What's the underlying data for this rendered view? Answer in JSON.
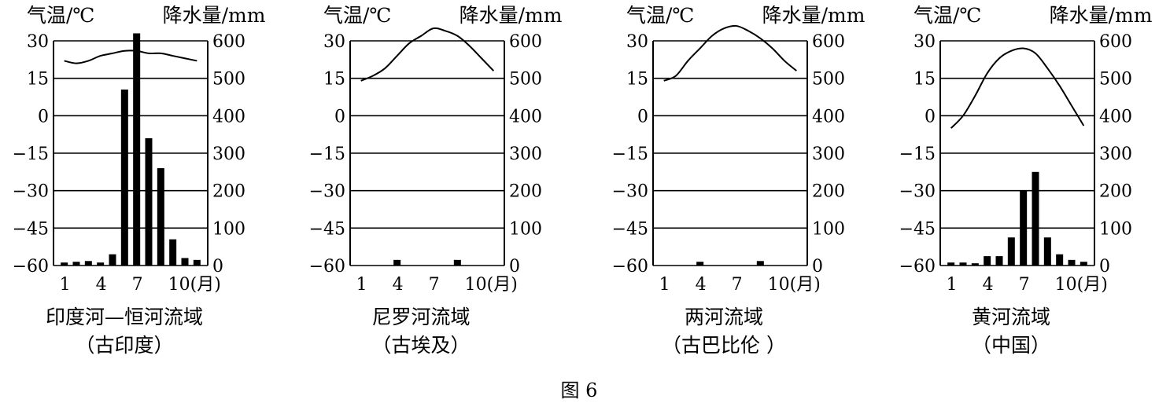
{
  "figure_label": "图 6",
  "chart_data": [
    {
      "type": "bar+line",
      "title": "印度河—恒河流域",
      "subtitle": "（古印度）",
      "temp_label": "气温/℃",
      "precip_label": "降水量/mm",
      "temp_ticks": [
        "30",
        "15",
        "0",
        "−15",
        "−30",
        "−45",
        "−60"
      ],
      "precip_ticks": [
        "600",
        "500",
        "400",
        "300",
        "200",
        "100",
        "0"
      ],
      "month_ticks": [
        "1",
        "4",
        "7",
        "10(月)"
      ],
      "temp_range": [
        -60,
        30
      ],
      "precip_range": [
        0,
        600
      ],
      "months": [
        1,
        2,
        3,
        4,
        5,
        6,
        7,
        8,
        9,
        10,
        11,
        12
      ],
      "temperature": [
        22,
        21,
        22,
        24,
        25,
        26,
        26,
        25,
        25,
        24,
        23,
        22
      ],
      "precipitation": [
        8,
        10,
        12,
        8,
        30,
        470,
        620,
        340,
        260,
        70,
        20,
        15
      ],
      "grid": true
    },
    {
      "type": "bar+line",
      "title": "尼罗河流域",
      "subtitle": "（古埃及）",
      "temp_label": "气温/℃",
      "precip_label": "降水量/mm",
      "temp_ticks": [
        "30",
        "15",
        "0",
        "−15",
        "−30",
        "−45",
        "−60"
      ],
      "precip_ticks": [
        "600",
        "500",
        "400",
        "300",
        "200",
        "100",
        "0"
      ],
      "month_ticks": [
        "1",
        "4",
        "7",
        "10(月)"
      ],
      "temp_range": [
        -60,
        30
      ],
      "precip_range": [
        0,
        600
      ],
      "months": [
        1,
        2,
        3,
        4,
        5,
        6,
        7,
        8,
        9,
        10,
        11,
        12
      ],
      "temperature": [
        14,
        16,
        19,
        24,
        29,
        32,
        35,
        34,
        32,
        28,
        23,
        18
      ],
      "precipitation": [
        0,
        0,
        0,
        15,
        0,
        0,
        0,
        0,
        15,
        0,
        0,
        0
      ],
      "grid": true
    },
    {
      "type": "bar+line",
      "title": "两河流域",
      "subtitle": "（古巴比伦 ）",
      "temp_label": "气温/℃",
      "precip_label": "降水量/mm",
      "temp_ticks": [
        "30",
        "15",
        "0",
        "−15",
        "−30",
        "−45",
        "−60"
      ],
      "precip_ticks": [
        "600",
        "500",
        "400",
        "300",
        "200",
        "100",
        "0"
      ],
      "month_ticks": [
        "1",
        "4",
        "7",
        "10(月)"
      ],
      "temp_range": [
        -60,
        30
      ],
      "precip_range": [
        0,
        600
      ],
      "months": [
        1,
        2,
        3,
        4,
        5,
        6,
        7,
        8,
        9,
        10,
        11,
        12
      ],
      "temperature": [
        14,
        16,
        22,
        27,
        32,
        35,
        36,
        34,
        31,
        27,
        22,
        18
      ],
      "precipitation": [
        0,
        0,
        0,
        10,
        0,
        0,
        0,
        0,
        12,
        0,
        0,
        0
      ],
      "grid": true
    },
    {
      "type": "bar+line",
      "title": "黄河流域",
      "subtitle": "（中国）",
      "temp_label": "气温/℃",
      "precip_label": "降水量/mm",
      "temp_ticks": [
        "30",
        "15",
        "0",
        "−15",
        "−30",
        "−45",
        "−60"
      ],
      "precip_ticks": [
        "600",
        "500",
        "400",
        "300",
        "200",
        "100",
        "0"
      ],
      "month_ticks": [
        "1",
        "4",
        "7",
        "10(月)"
      ],
      "temp_range": [
        -60,
        30
      ],
      "precip_range": [
        0,
        600
      ],
      "months": [
        1,
        2,
        3,
        4,
        5,
        6,
        7,
        8,
        9,
        10,
        11,
        12
      ],
      "temperature": [
        -5,
        0,
        8,
        17,
        23,
        26,
        27,
        25,
        19,
        12,
        4,
        -4
      ],
      "precipitation": [
        8,
        8,
        6,
        25,
        25,
        75,
        200,
        250,
        75,
        30,
        15,
        10
      ],
      "grid": true
    }
  ]
}
